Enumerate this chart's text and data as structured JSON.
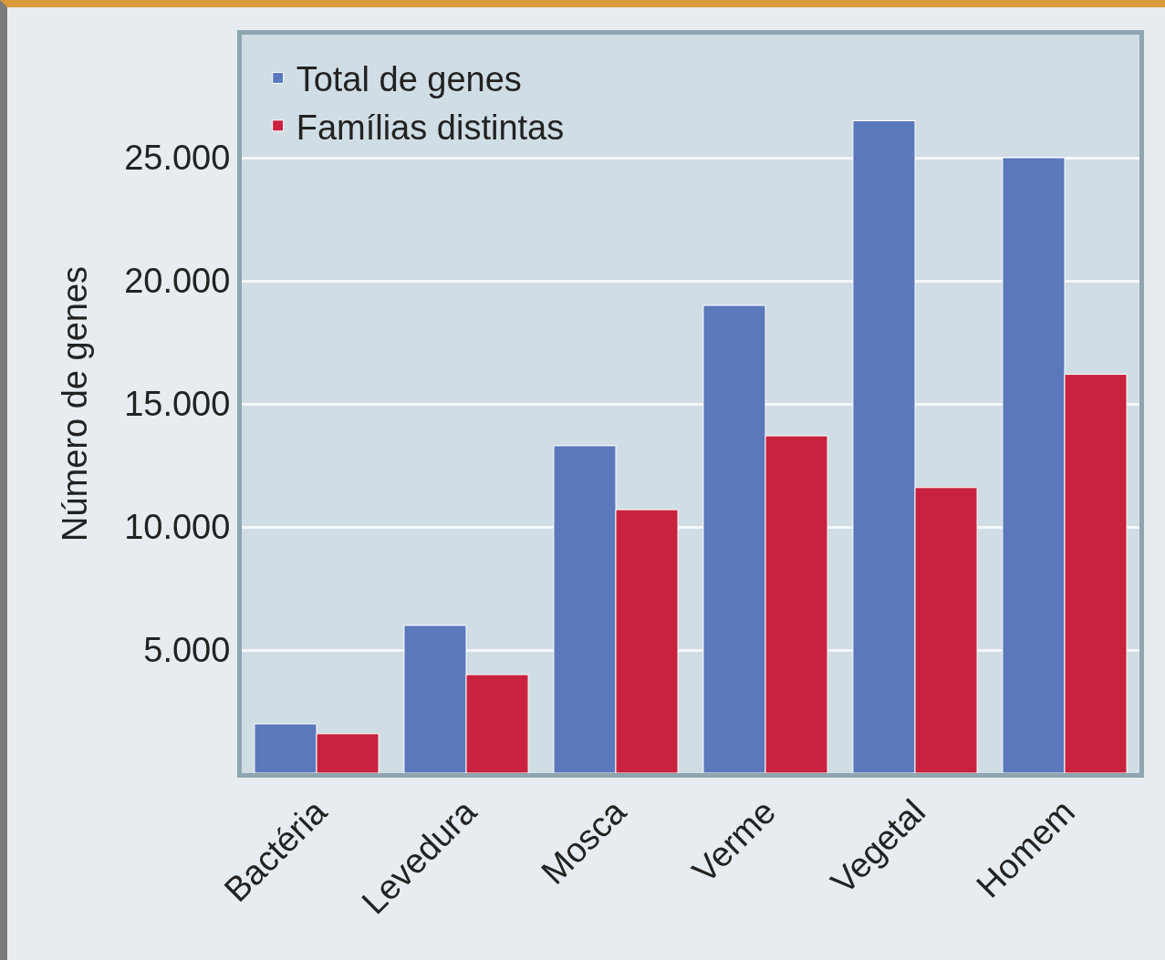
{
  "chart_data": {
    "type": "bar",
    "ylabel": "Número de genes",
    "categories": [
      "Bactéria",
      "Levedura",
      "Mosca",
      "Verme",
      "Vegetal",
      "Homem"
    ],
    "series": [
      {
        "name": "Total de genes",
        "color": "#5a78bb",
        "values": [
          2000,
          6000,
          13300,
          19000,
          26500,
          25000
        ]
      },
      {
        "name": "Famílias distintas",
        "color": "#c8223f",
        "values": [
          1600,
          4000,
          10700,
          13700,
          11600,
          16200
        ]
      }
    ],
    "ylim": [
      0,
      30000
    ],
    "yticks": [
      {
        "value": 5000,
        "label": "5.000"
      },
      {
        "value": 10000,
        "label": "10.000"
      },
      {
        "value": 15000,
        "label": "15.000"
      },
      {
        "value": 20000,
        "label": "20.000"
      },
      {
        "value": 25000,
        "label": "25.000"
      }
    ],
    "grid": "y",
    "legend": "top left"
  }
}
